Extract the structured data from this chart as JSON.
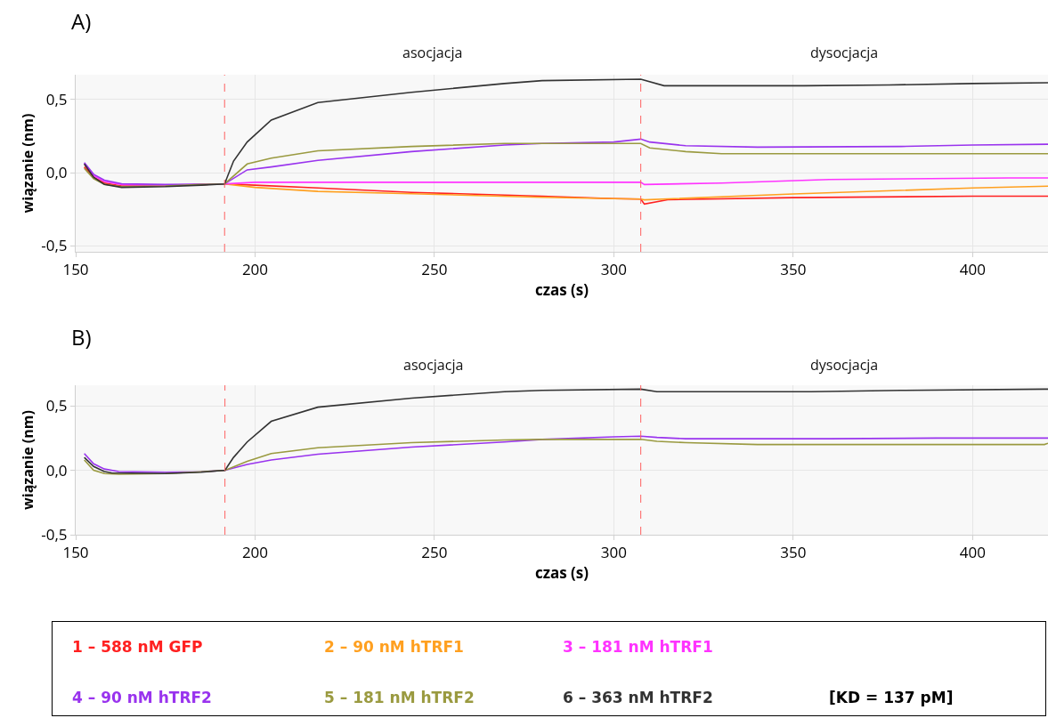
{
  "chart_data": [
    {
      "type": "line",
      "title": "A)",
      "xlabel": "czas (s)",
      "ylabel": "wiązanie (nm)",
      "xlim": [
        150,
        421
      ],
      "ylim": [
        -0.54,
        0.67
      ],
      "xticks": [
        150,
        200,
        250,
        300,
        350,
        400
      ],
      "yticks": [
        {
          "value": -0.5,
          "label": "-0,5"
        },
        {
          "value": 0,
          "label": "0,0"
        },
        {
          "value": 0.5,
          "label": "0,5"
        }
      ],
      "grid": true,
      "legend": "bottom",
      "line_style": "solid",
      "marker": "none",
      "ref_lines": [
        {
          "axis": "x",
          "value": 191.5,
          "color": "#ff6060",
          "line_style": "dashed"
        },
        {
          "axis": "x",
          "value": 307.5,
          "color": "#ff6060",
          "line_style": "dashed"
        }
      ],
      "annotations": [
        "asocjacja",
        "dysocjacja"
      ],
      "series": [
        {
          "name": "1 – 588 nM GFP",
          "color": "#ff2020",
          "x": [
            152.4,
            155,
            158,
            162.8,
            175,
            185,
            191.5,
            200,
            217.5,
            243.6,
            280,
            300,
            307.5,
            308.5,
            315,
            350,
            400,
            421
          ],
          "values": [
            0.04,
            -0.03,
            -0.07,
            -0.09,
            -0.09,
            -0.08,
            -0.076,
            -0.085,
            -0.104,
            -0.134,
            -0.16,
            -0.177,
            -0.18,
            -0.214,
            -0.184,
            -0.17,
            -0.16,
            -0.16
          ]
        },
        {
          "name": "2 – 90 nM hTRF1",
          "color": "#ffa020",
          "x": [
            185,
            191.5,
            200,
            217.5,
            243.6,
            280,
            300,
            307.5,
            308.5,
            350,
            400,
            421
          ],
          "values": [
            -0.08,
            -0.076,
            -0.1,
            -0.127,
            -0.143,
            -0.168,
            -0.177,
            -0.18,
            -0.185,
            -0.145,
            -0.104,
            -0.092
          ]
        },
        {
          "name": "3 – 181 nM hTRF1",
          "color": "#ff33ff",
          "x": [
            152.4,
            155,
            158,
            162.8,
            175,
            185,
            191.5,
            200,
            250,
            307.5,
            308.5,
            330,
            360,
            410,
            421
          ],
          "values": [
            0.06,
            -0.02,
            -0.06,
            -0.08,
            -0.085,
            -0.08,
            -0.076,
            -0.065,
            -0.065,
            -0.065,
            -0.08,
            -0.07,
            -0.046,
            -0.035,
            -0.035
          ]
        },
        {
          "name": "4 – 90 nM hTRF2",
          "color": "#9933ee",
          "x": [
            152.4,
            155,
            158,
            162.8,
            175,
            185,
            191.5,
            197.8,
            204.5,
            217.5,
            243.6,
            269.5,
            280,
            300,
            307.5,
            310,
            320,
            340,
            380,
            400,
            421
          ],
          "values": [
            0.07,
            -0.01,
            -0.05,
            -0.075,
            -0.08,
            -0.078,
            -0.076,
            0.02,
            0.04,
            0.085,
            0.145,
            0.19,
            0.2,
            0.21,
            0.23,
            0.21,
            0.185,
            0.175,
            0.18,
            0.19,
            0.195
          ]
        },
        {
          "name": "5 – 181 nM hTRF2",
          "color": "#9a9a40",
          "x": [
            152.4,
            155,
            158,
            162.8,
            175,
            185,
            191.5,
            197.8,
            204.5,
            217.5,
            243.6,
            269.5,
            307.5,
            310,
            320,
            330,
            421
          ],
          "values": [
            0.03,
            -0.04,
            -0.08,
            -0.095,
            -0.09,
            -0.08,
            -0.076,
            0.06,
            0.1,
            0.15,
            0.18,
            0.2,
            0.2,
            0.17,
            0.145,
            0.13,
            0.13
          ]
        },
        {
          "name": "6 – 363 nM hTRF2",
          "color": "#333333",
          "x": [
            152.4,
            155,
            158,
            162.8,
            175,
            185,
            191.5,
            194,
            197.8,
            204.5,
            217.5,
            243.6,
            269.5,
            280,
            307.5,
            314,
            353,
            376.6,
            400,
            421
          ],
          "values": [
            0.06,
            -0.03,
            -0.08,
            -0.1,
            -0.095,
            -0.085,
            -0.076,
            0.08,
            0.21,
            0.36,
            0.48,
            0.55,
            0.61,
            0.63,
            0.64,
            0.595,
            0.595,
            0.6,
            0.61,
            0.615
          ]
        }
      ]
    },
    {
      "type": "line",
      "title": "B)",
      "xlabel": "czas (s)",
      "ylabel": "wiązanie (nm)",
      "xlim": [
        150,
        421
      ],
      "ylim": [
        -0.5,
        0.66
      ],
      "xticks": [
        150,
        200,
        250,
        300,
        350,
        400
      ],
      "yticks": [
        {
          "value": -0.5,
          "label": "-0,5"
        },
        {
          "value": 0,
          "label": "0,0"
        },
        {
          "value": 0.5,
          "label": "0,5"
        }
      ],
      "grid": true,
      "line_style": "solid",
      "marker": "none",
      "ref_lines": [
        {
          "axis": "x",
          "value": 191.6,
          "color": "#ff6060",
          "line_style": "dashed"
        },
        {
          "axis": "x",
          "value": 307.5,
          "color": "#ff6060",
          "line_style": "dashed"
        }
      ],
      "annotations": [
        "asocjacja",
        "dysocjacja",
        "[KD = 137 pM]"
      ],
      "series": [
        {
          "color": "#9933ee",
          "x": [
            152.4,
            155,
            158,
            162,
            175,
            185,
            191.6,
            197.8,
            204.5,
            217.5,
            243.6,
            269.5,
            280,
            300,
            307.5,
            312,
            320,
            360,
            390,
            421
          ],
          "values": [
            0.13,
            0.05,
            0.01,
            -0.01,
            -0.015,
            -0.012,
            0,
            0.045,
            0.08,
            0.125,
            0.18,
            0.22,
            0.24,
            0.26,
            0.265,
            0.255,
            0.245,
            0.245,
            0.25,
            0.25
          ]
        },
        {
          "color": "#9a9a40",
          "x": [
            152.4,
            155,
            158,
            162,
            175,
            185,
            191.6,
            197.8,
            204.5,
            217.5,
            243.6,
            269.5,
            280,
            307.5,
            312,
            320,
            340,
            420,
            421
          ],
          "values": [
            0.08,
            0.0,
            -0.025,
            -0.03,
            -0.025,
            -0.012,
            0,
            0.07,
            0.13,
            0.175,
            0.215,
            0.235,
            0.24,
            0.24,
            0.225,
            0.215,
            0.2,
            0.2,
            0.21
          ]
        },
        {
          "color": "#333333",
          "x": [
            152.4,
            155,
            158,
            160,
            175,
            185,
            191.6,
            194,
            197.8,
            204.5,
            217.5,
            243.6,
            269.5,
            280,
            307.5,
            312,
            355,
            380,
            420,
            421
          ],
          "values": [
            0.1,
            0.03,
            -0.01,
            -0.02,
            -0.025,
            -0.015,
            0,
            0.1,
            0.22,
            0.38,
            0.49,
            0.56,
            0.61,
            0.62,
            0.63,
            0.61,
            0.61,
            0.62,
            0.63,
            0.63
          ]
        }
      ]
    }
  ]
}
